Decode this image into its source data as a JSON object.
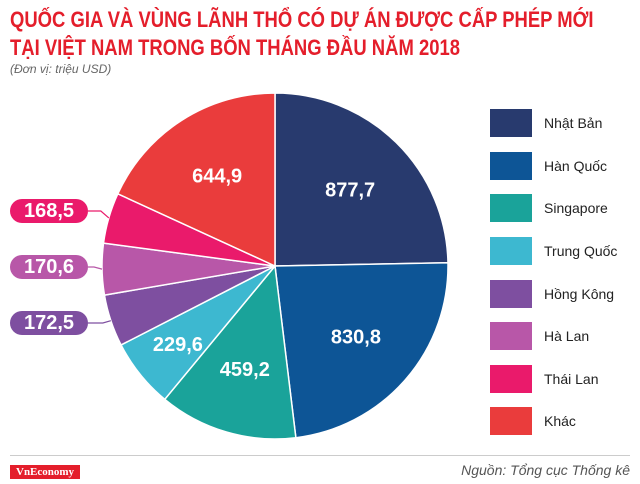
{
  "title_line1": "QUỐC GIA VÀ VÙNG LÃNH THỔ CÓ DỰ ÁN ĐƯỢC CẤP PHÉP MỚI",
  "title_line2": "TẠI VIỆT NAM TRONG BỐN THÁNG ĐẦU NĂM 2018",
  "unit": "(Đơn vị: triệu USD)",
  "source": "Nguồn: Tổng cục Thống kê",
  "logo": "VnEconomy",
  "chart_data": {
    "type": "pie",
    "title": "QUỐC GIA VÀ VÙNG LÃNH THỔ CÓ DỰ ÁN ĐƯỢC CẤP PHÉP MỚI TẠI VIỆT NAM TRONG BỐN THÁNG ĐẦU NĂM 2018",
    "legend_position": "right",
    "slices": [
      {
        "name": "Nhật Bản",
        "value": 877.7,
        "label": "877,7",
        "color": "#283a6e"
      },
      {
        "name": "Hàn Quốc",
        "value": 830.8,
        "label": "830,8",
        "color": "#0d5596"
      },
      {
        "name": "Singapore",
        "value": 459.2,
        "label": "459,2",
        "color": "#1aa39a"
      },
      {
        "name": "Trung Quốc",
        "value": 229.6,
        "label": "229,6",
        "color": "#3db8d0"
      },
      {
        "name": "Hồng Kông",
        "value": 172.5,
        "label": "172,5",
        "color": "#7e4fa0"
      },
      {
        "name": "Hà Lan",
        "value": 170.6,
        "label": "170,6",
        "color": "#b857a8"
      },
      {
        "name": "Thái Lan",
        "value": 168.5,
        "label": "168,5",
        "color": "#ea1a6b"
      },
      {
        "name": "Khác",
        "value": 644.9,
        "label": "644,9",
        "color": "#ea3c3c"
      }
    ]
  }
}
